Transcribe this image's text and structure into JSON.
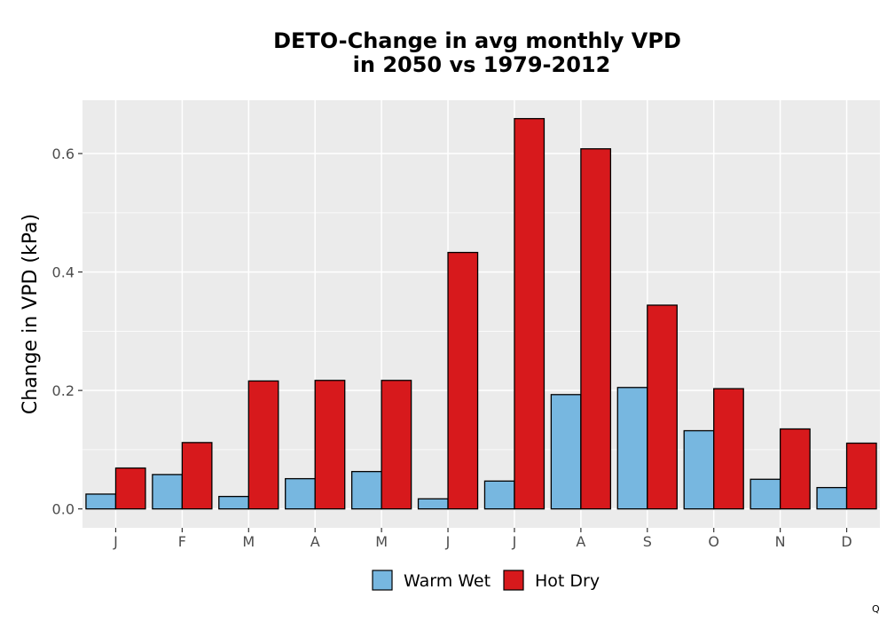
{
  "chart_data": {
    "type": "bar",
    "title_line1": "DETO-Change in avg monthly VPD",
    "title_line2": "in 2050 vs 1979-2012",
    "xlabel": "",
    "ylabel": "Change in VPD (kPa)",
    "ylim": [
      -0.032,
      0.69
    ],
    "yticks": [
      0.0,
      0.2,
      0.4,
      0.6
    ],
    "ytick_labels": [
      "0.0",
      "0.2",
      "0.4",
      "0.6"
    ],
    "grid": true,
    "legend_position": "bottom",
    "categories": [
      "J",
      "F",
      "M",
      "A",
      "M",
      "J",
      "J",
      "A",
      "S",
      "O",
      "N",
      "D"
    ],
    "series": [
      {
        "name": "Warm Wet",
        "color": "#77b7e0",
        "values": [
          0.025,
          0.058,
          0.021,
          0.051,
          0.063,
          0.017,
          0.047,
          0.193,
          0.205,
          0.132,
          0.05,
          0.036
        ]
      },
      {
        "name": "Hot Dry",
        "color": "#d7191c",
        "values": [
          0.069,
          0.112,
          0.216,
          0.217,
          0.217,
          0.433,
          0.659,
          0.608,
          0.344,
          0.203,
          0.135,
          0.111
        ]
      }
    ]
  },
  "corner_mark": "Q"
}
